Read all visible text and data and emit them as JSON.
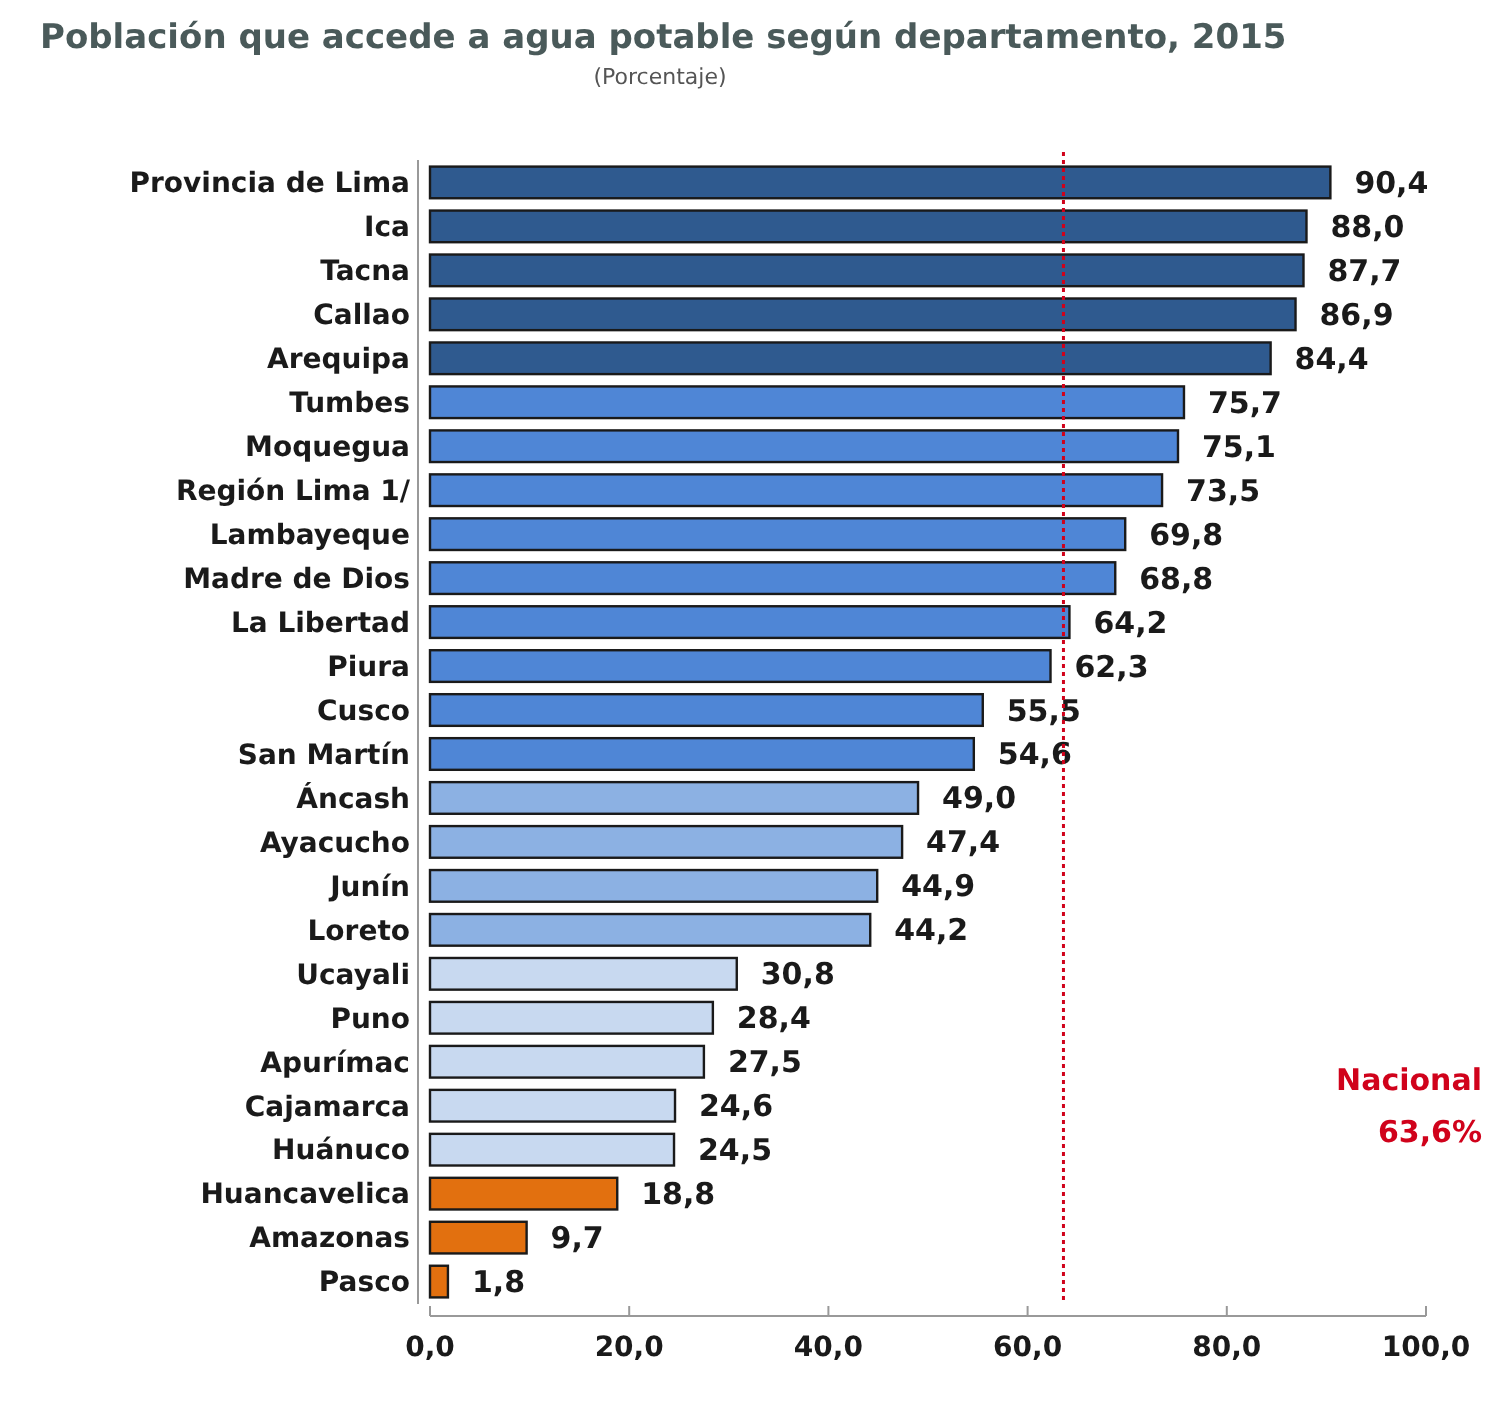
{
  "chart_data": {
    "type": "bar",
    "orientation": "horizontal",
    "title": "Población que accede a agua potable según departamento, 2015",
    "subtitle": "(Porcentaje)",
    "categories": [
      "Provincia de Lima",
      "Ica",
      "Tacna",
      "Callao",
      "Arequipa",
      "Tumbes",
      "Moquegua",
      "Región Lima 1/",
      "Lambayeque",
      "Madre de Dios",
      "La Libertad",
      "Piura",
      "Cusco",
      "San Martín",
      "Áncash",
      "Ayacucho",
      "Junín",
      "Loreto",
      "Ucayali",
      "Puno",
      "Apurímac",
      "Cajamarca",
      "Huánuco",
      "Huancavelica",
      "Amazonas",
      "Pasco"
    ],
    "values": [
      90.4,
      88.0,
      87.7,
      86.9,
      84.4,
      75.7,
      75.1,
      73.5,
      69.8,
      68.8,
      64.2,
      62.3,
      55.5,
      54.6,
      49.0,
      47.4,
      44.9,
      44.2,
      30.8,
      28.4,
      27.5,
      24.6,
      24.5,
      18.8,
      9.7,
      1.8
    ],
    "value_labels": [
      "90,4",
      "88,0",
      "87,7",
      "86,9",
      "84,4",
      "75,7",
      "75,1",
      "73,5",
      "69,8",
      "68,8",
      "64,2",
      "62,3",
      "55,5",
      "54,6",
      "49,0",
      "47,4",
      "44,9",
      "44,2",
      "30,8",
      "28,4",
      "27,5",
      "24,6",
      "24,5",
      "18,8",
      "9,7",
      "1,8"
    ],
    "colors": [
      "#2f5a8f",
      "#2f5a8f",
      "#2f5a8f",
      "#2f5a8f",
      "#2f5a8f",
      "#4f86d6",
      "#4f86d6",
      "#4f86d6",
      "#4f86d6",
      "#4f86d6",
      "#4f86d6",
      "#4f86d6",
      "#4f86d6",
      "#4f86d6",
      "#8cb1e3",
      "#8cb1e3",
      "#8cb1e3",
      "#8cb1e3",
      "#c8d9f0",
      "#c8d9f0",
      "#c8d9f0",
      "#c8d9f0",
      "#c8d9f0",
      "#e2700f",
      "#e2700f",
      "#e2700f"
    ],
    "xlim": [
      0,
      100
    ],
    "xticks": [
      {
        "value": 0,
        "label": "0,0"
      },
      {
        "value": 20,
        "label": "20,0"
      },
      {
        "value": 40,
        "label": "40,0"
      },
      {
        "value": 60,
        "label": "60,0"
      },
      {
        "value": 80,
        "label": "80,0"
      },
      {
        "value": 100,
        "label": "100,0"
      }
    ],
    "ref_lines": [
      {
        "axis": "x",
        "value": 63.6,
        "label": "Nacional 63,6%",
        "color": "#d0021b",
        "line_style": "dotted"
      }
    ],
    "grid": false
  }
}
